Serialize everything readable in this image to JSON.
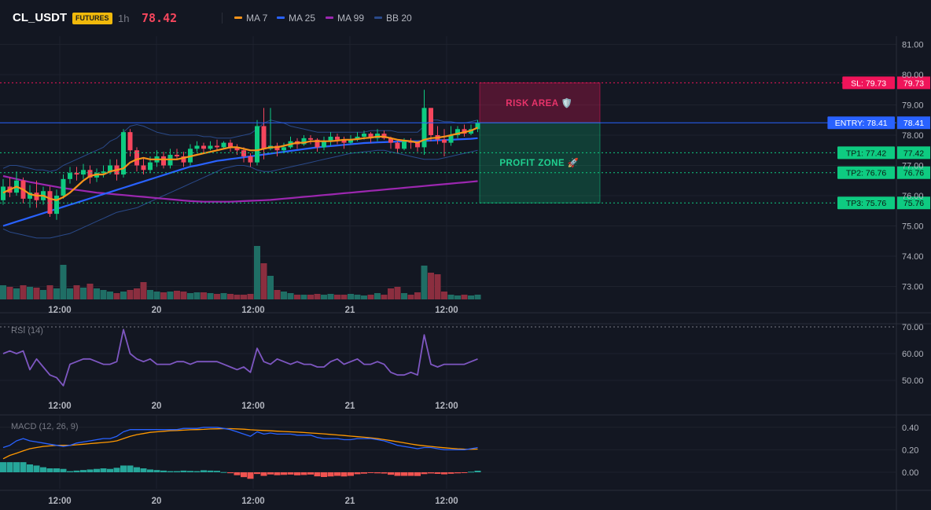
{
  "header": {
    "symbol": "CL_USDT",
    "badge": "FUTURES",
    "timeframe": "1h",
    "last_price": "78.42",
    "legend": [
      {
        "label": "MA 7",
        "color": "#f7931a"
      },
      {
        "label": "MA 25",
        "color": "#2962ff"
      },
      {
        "label": "MA 99",
        "color": "#9c27b0"
      },
      {
        "label": "BB 20",
        "color": "#2a4a8a"
      }
    ]
  },
  "colors": {
    "up": "#0ecb81",
    "down": "#f6465d",
    "vol_up": "#1f6e65",
    "vol_down": "#8b2e3f",
    "grid": "#1e222d",
    "bb": "#2a4a8a",
    "rsi": "#7e57c2",
    "macd": "#2962ff",
    "signal": "#ff9800"
  },
  "chart_data": [
    {
      "type": "candlestick",
      "title": "CL_USDT",
      "y_ticks": [
        "81.00",
        "80.00",
        "79.00",
        "78.00",
        "77.00",
        "76.00",
        "75.00",
        "74.00",
        "73.00"
      ],
      "x_ticks": [
        "12:00",
        "20",
        "12:00",
        "21",
        "12:00"
      ],
      "ylim": [
        72.5,
        81.2
      ],
      "candles": [
        [
          75.85,
          76.3,
          76.55,
          75.7
        ],
        [
          76.3,
          76.1,
          76.6,
          75.95
        ],
        [
          76.1,
          76.5,
          76.8,
          76.0
        ],
        [
          76.5,
          75.9,
          76.6,
          75.75
        ],
        [
          75.9,
          76.1,
          76.35,
          75.6
        ],
        [
          76.1,
          75.85,
          76.5,
          75.6
        ],
        [
          75.85,
          76.15,
          76.3,
          75.7
        ],
        [
          76.15,
          75.4,
          76.3,
          75.3
        ],
        [
          75.4,
          76.0,
          76.2,
          75.2
        ],
        [
          76.0,
          76.55,
          76.7,
          75.9
        ],
        [
          76.55,
          76.75,
          76.95,
          76.4
        ],
        [
          76.75,
          76.7,
          76.95,
          76.5
        ],
        [
          76.7,
          76.85,
          77.05,
          76.55
        ],
        [
          76.85,
          76.6,
          77.0,
          76.4
        ],
        [
          76.6,
          76.75,
          76.9,
          76.45
        ],
        [
          76.75,
          76.8,
          77.0,
          76.6
        ],
        [
          76.8,
          77.0,
          77.2,
          76.7
        ],
        [
          77.0,
          76.7,
          77.2,
          76.5
        ],
        [
          76.7,
          78.1,
          78.2,
          76.6
        ],
        [
          78.1,
          77.5,
          78.2,
          77.3
        ],
        [
          77.5,
          77.0,
          77.6,
          76.8
        ],
        [
          77.0,
          76.85,
          77.25,
          76.7
        ],
        [
          76.85,
          77.1,
          77.3,
          76.75
        ],
        [
          77.1,
          77.3,
          77.5,
          76.95
        ],
        [
          77.3,
          77.0,
          77.45,
          76.9
        ],
        [
          77.0,
          77.35,
          77.55,
          76.9
        ],
        [
          77.35,
          77.3,
          77.55,
          77.2
        ],
        [
          77.3,
          77.1,
          77.45,
          76.95
        ],
        [
          77.1,
          77.55,
          77.7,
          77.0
        ],
        [
          77.55,
          77.65,
          77.8,
          77.45
        ],
        [
          77.65,
          77.55,
          77.75,
          77.4
        ],
        [
          77.55,
          77.65,
          77.8,
          77.5
        ],
        [
          77.65,
          77.6,
          77.85,
          77.5
        ],
        [
          77.6,
          77.75,
          77.8,
          77.55
        ],
        [
          77.75,
          77.6,
          77.85,
          77.45
        ],
        [
          77.6,
          77.5,
          77.7,
          77.35
        ],
        [
          77.5,
          77.3,
          77.6,
          77.1
        ],
        [
          77.3,
          77.1,
          77.4,
          76.95
        ],
        [
          77.1,
          78.3,
          78.5,
          77.0
        ],
        [
          78.3,
          77.55,
          78.9,
          77.2
        ],
        [
          77.55,
          77.65,
          78.9,
          77.5
        ],
        [
          77.65,
          77.5,
          77.75,
          77.3
        ],
        [
          77.5,
          77.6,
          77.75,
          77.4
        ],
        [
          77.6,
          77.8,
          77.95,
          77.55
        ],
        [
          77.8,
          77.7,
          77.9,
          77.55
        ],
        [
          77.7,
          77.9,
          78.0,
          77.65
        ],
        [
          77.9,
          77.85,
          78.0,
          77.7
        ],
        [
          77.85,
          77.6,
          77.9,
          77.45
        ],
        [
          77.6,
          77.8,
          77.95,
          77.5
        ],
        [
          77.8,
          77.95,
          78.1,
          77.65
        ],
        [
          77.95,
          77.85,
          78.05,
          77.7
        ],
        [
          77.85,
          77.75,
          77.95,
          77.55
        ],
        [
          77.75,
          77.85,
          78.0,
          77.7
        ],
        [
          77.85,
          77.95,
          78.1,
          77.8
        ],
        [
          77.95,
          78.05,
          78.15,
          77.85
        ],
        [
          78.05,
          77.9,
          78.1,
          77.75
        ],
        [
          77.9,
          78.05,
          78.2,
          77.8
        ],
        [
          78.05,
          77.9,
          78.15,
          77.85
        ],
        [
          77.9,
          77.75,
          77.95,
          77.55
        ],
        [
          77.75,
          77.55,
          77.8,
          77.4
        ],
        [
          77.55,
          77.8,
          77.9,
          77.5
        ],
        [
          77.8,
          77.75,
          77.9,
          77.55
        ],
        [
          77.75,
          77.6,
          77.8,
          77.45
        ],
        [
          77.6,
          78.9,
          79.5,
          77.35
        ],
        [
          78.9,
          78.0,
          78.9,
          77.8
        ],
        [
          78.0,
          77.85,
          78.3,
          77.7
        ],
        [
          77.85,
          77.75,
          78.2,
          77.3
        ],
        [
          77.75,
          78.0,
          78.3,
          77.65
        ],
        [
          78.0,
          78.2,
          78.3,
          77.9
        ],
        [
          78.2,
          78.05,
          78.35,
          77.95
        ],
        [
          78.05,
          78.2,
          78.35,
          78.0
        ],
        [
          78.2,
          78.42,
          78.5,
          78.1
        ]
      ],
      "volumes": [
        18,
        16,
        14,
        18,
        16,
        15,
        12,
        18,
        14,
        44,
        14,
        18,
        15,
        20,
        14,
        12,
        10,
        8,
        10,
        12,
        14,
        22,
        12,
        10,
        9,
        10,
        11,
        10,
        8,
        9,
        9,
        8,
        7,
        8,
        7,
        6,
        6,
        7,
        68,
        46,
        30,
        12,
        10,
        8,
        6,
        6,
        6,
        7,
        6,
        7,
        6,
        6,
        7,
        6,
        5,
        6,
        8,
        6,
        14,
        16,
        8,
        6,
        9,
        43,
        34,
        32,
        10,
        6,
        5,
        6,
        5,
        6
      ],
      "ma7": [
        76.1,
        76.2,
        76.3,
        76.2,
        76.05,
        76.0,
        76.0,
        75.9,
        75.85,
        75.95,
        76.1,
        76.3,
        76.5,
        76.65,
        76.7,
        76.7,
        76.8,
        76.85,
        76.9,
        77.1,
        77.2,
        77.25,
        77.2,
        77.2,
        77.2,
        77.2,
        77.2,
        77.25,
        77.3,
        77.35,
        77.4,
        77.45,
        77.5,
        77.55,
        77.6,
        77.6,
        77.55,
        77.5,
        77.5,
        77.55,
        77.6,
        77.6,
        77.65,
        77.7,
        77.75,
        77.75,
        77.8,
        77.8,
        77.8,
        77.8,
        77.82,
        77.85,
        77.85,
        77.87,
        77.9,
        77.92,
        77.95,
        77.95,
        77.9,
        77.85,
        77.82,
        77.8,
        77.75,
        77.85,
        77.9,
        77.92,
        77.95,
        78.0,
        78.05,
        78.1,
        78.15,
        78.25
      ],
      "ma25": [
        75.0,
        75.07,
        75.14,
        75.21,
        75.28,
        75.35,
        75.42,
        75.49,
        75.56,
        75.63,
        75.7,
        75.77,
        75.84,
        75.91,
        75.98,
        76.05,
        76.12,
        76.19,
        76.26,
        76.33,
        76.4,
        76.47,
        76.54,
        76.61,
        76.68,
        76.75,
        76.82,
        76.89,
        76.96,
        77.0,
        77.05,
        77.1,
        77.15,
        77.18,
        77.21,
        77.24,
        77.27,
        77.3,
        77.33,
        77.36,
        77.39,
        77.42,
        77.45,
        77.48,
        77.51,
        77.54,
        77.57,
        77.6,
        77.62,
        77.64,
        77.66,
        77.68,
        77.7,
        77.72,
        77.74,
        77.75,
        77.76,
        77.77,
        77.78,
        77.79,
        77.8,
        77.8,
        77.8,
        77.81,
        77.82,
        77.83,
        77.84,
        77.85,
        77.86,
        77.87,
        77.88,
        77.9
      ],
      "ma99": [
        76.65,
        76.6,
        76.55,
        76.5,
        76.45,
        76.41,
        76.37,
        76.33,
        76.29,
        76.25,
        76.22,
        76.19,
        76.16,
        76.13,
        76.1,
        76.08,
        76.06,
        76.04,
        76.02,
        76.0,
        75.98,
        75.96,
        75.94,
        75.92,
        75.9,
        75.88,
        75.86,
        75.84,
        75.82,
        75.81,
        75.8,
        75.8,
        75.8,
        75.8,
        75.8,
        75.81,
        75.82,
        75.83,
        75.84,
        75.85,
        75.86,
        75.88,
        75.9,
        75.92,
        75.94,
        75.96,
        75.98,
        76.0,
        76.02,
        76.04,
        76.06,
        76.08,
        76.1,
        76.12,
        76.14,
        76.16,
        76.18,
        76.2,
        76.22,
        76.24,
        76.26,
        76.28,
        76.3,
        76.32,
        76.34,
        76.36,
        76.38,
        76.4,
        76.42,
        76.44,
        76.46,
        76.48
      ],
      "bb_upper": [
        76.9,
        77.0,
        77.0,
        76.95,
        76.9,
        76.85,
        76.85,
        76.8,
        76.85,
        77.0,
        77.1,
        77.2,
        77.3,
        77.4,
        77.5,
        77.6,
        77.8,
        77.9,
        78.1,
        78.3,
        78.35,
        78.3,
        78.2,
        78.1,
        78.05,
        78.0,
        78.0,
        78.0,
        78.0,
        78.0,
        77.95,
        77.95,
        77.9,
        77.9,
        77.9,
        77.95,
        78.0,
        78.05,
        78.2,
        78.4,
        78.5,
        78.45,
        78.4,
        78.3,
        78.25,
        78.2,
        78.15,
        78.1,
        78.1,
        78.1,
        78.1,
        78.1,
        78.1,
        78.1,
        78.1,
        78.15,
        78.15,
        78.15,
        78.15,
        78.1,
        78.1,
        78.1,
        78.1,
        78.3,
        78.5,
        78.5,
        78.45,
        78.45,
        78.4,
        78.4,
        78.45,
        78.5
      ],
      "bb_lower": [
        74.9,
        74.8,
        74.75,
        74.7,
        74.65,
        74.6,
        74.6,
        74.6,
        74.65,
        74.7,
        74.75,
        74.85,
        74.95,
        75.05,
        75.15,
        75.25,
        75.35,
        75.45,
        75.5,
        75.55,
        75.6,
        75.7,
        75.8,
        75.9,
        76.0,
        76.1,
        76.2,
        76.3,
        76.4,
        76.5,
        76.6,
        76.7,
        76.8,
        76.9,
        76.95,
        77.0,
        77.0,
        76.95,
        76.85,
        76.8,
        76.8,
        76.85,
        76.9,
        76.95,
        77.0,
        77.05,
        77.1,
        77.15,
        77.2,
        77.25,
        77.3,
        77.35,
        77.4,
        77.42,
        77.45,
        77.47,
        77.5,
        77.5,
        77.45,
        77.4,
        77.35,
        77.3,
        77.25,
        77.2,
        77.2,
        77.2,
        77.25,
        77.3,
        77.35,
        77.4,
        77.45,
        77.5
      ],
      "levels": [
        {
          "id": "sl",
          "label": "SL: 79.73",
          "price": "79.73",
          "value": 79.73,
          "color": "#f0145a",
          "style": "dotted"
        },
        {
          "id": "entry",
          "label": "ENTRY: 78.41",
          "price": "78.41",
          "value": 78.41,
          "color": "#2962ff",
          "style": "solid"
        },
        {
          "id": "tp1",
          "label": "TP1: 77.42",
          "price": "77.42",
          "value": 77.42,
          "color": "#0ecb81",
          "style": "dotted"
        },
        {
          "id": "tp2",
          "label": "TP2: 76.76",
          "price": "76.76",
          "value": 76.76,
          "color": "#0ecb81",
          "style": "dotted"
        },
        {
          "id": "tp3",
          "label": "TP3: 75.76",
          "price": "75.76",
          "value": 75.76,
          "color": "#0ecb81",
          "style": "dotted"
        }
      ],
      "zones": [
        {
          "id": "risk",
          "label": "RISK AREA 🛡️",
          "from": 78.41,
          "to": 79.73,
          "color": "#f0145a"
        },
        {
          "id": "profit",
          "label": "PROFIT ZONE 🚀",
          "from": 75.76,
          "to": 78.41,
          "color": "#0ecb81"
        }
      ]
    },
    {
      "type": "line",
      "title": "RSI (14)",
      "y_ticks": [
        "70.00",
        "60.00",
        "50.00"
      ],
      "ylim": [
        44,
        72
      ],
      "x_ticks": [
        "12:00",
        "20",
        "12:00",
        "21",
        "12:00"
      ],
      "values": [
        60,
        61,
        60,
        61,
        54,
        58,
        55,
        52,
        51,
        48,
        56,
        57,
        58,
        58,
        57,
        56,
        56,
        57,
        69,
        60,
        58,
        57,
        58,
        56,
        56,
        56,
        57,
        57,
        56,
        57,
        57,
        57,
        57,
        56,
        55,
        54,
        55,
        53,
        62,
        57,
        56,
        58,
        57,
        56,
        57,
        56,
        56,
        55,
        55,
        57,
        58,
        56,
        57,
        58,
        56,
        56,
        57,
        56,
        53,
        52,
        52,
        53,
        52,
        67,
        56,
        55,
        56,
        56,
        56,
        56,
        57,
        58
      ],
      "overbought": 70
    },
    {
      "type": "line",
      "title": "MACD (12, 26, 9)",
      "y_ticks": [
        "0.40",
        "0.20",
        "0.00"
      ],
      "ylim": [
        -0.08,
        0.48
      ],
      "x_ticks": [
        "12:00",
        "20",
        "12:00",
        "21",
        "12:00"
      ],
      "macd": [
        0.22,
        0.24,
        0.28,
        0.3,
        0.28,
        0.27,
        0.26,
        0.25,
        0.24,
        0.23,
        0.24,
        0.26,
        0.27,
        0.28,
        0.29,
        0.3,
        0.3,
        0.32,
        0.36,
        0.38,
        0.38,
        0.38,
        0.38,
        0.38,
        0.38,
        0.38,
        0.38,
        0.39,
        0.39,
        0.39,
        0.4,
        0.4,
        0.4,
        0.39,
        0.38,
        0.36,
        0.34,
        0.32,
        0.36,
        0.34,
        0.35,
        0.34,
        0.34,
        0.34,
        0.33,
        0.33,
        0.33,
        0.31,
        0.3,
        0.3,
        0.3,
        0.29,
        0.29,
        0.3,
        0.3,
        0.3,
        0.29,
        0.28,
        0.26,
        0.24,
        0.23,
        0.22,
        0.21,
        0.22,
        0.22,
        0.21,
        0.2,
        0.2,
        0.2,
        0.2,
        0.21,
        0.22
      ],
      "signal": [
        0.12,
        0.15,
        0.17,
        0.19,
        0.21,
        0.22,
        0.23,
        0.235,
        0.24,
        0.24,
        0.24,
        0.245,
        0.25,
        0.255,
        0.26,
        0.265,
        0.27,
        0.28,
        0.3,
        0.32,
        0.335,
        0.345,
        0.355,
        0.36,
        0.365,
        0.37,
        0.372,
        0.375,
        0.378,
        0.38,
        0.382,
        0.385,
        0.387,
        0.388,
        0.388,
        0.386,
        0.383,
        0.378,
        0.375,
        0.372,
        0.369,
        0.366,
        0.363,
        0.36,
        0.357,
        0.354,
        0.35,
        0.346,
        0.342,
        0.337,
        0.332,
        0.327,
        0.322,
        0.317,
        0.312,
        0.306,
        0.299,
        0.291,
        0.282,
        0.272,
        0.262,
        0.252,
        0.243,
        0.236,
        0.23,
        0.224,
        0.218,
        0.213,
        0.209,
        0.206,
        0.205,
        0.206
      ],
      "histogram": [
        0.09,
        0.09,
        0.09,
        0.09,
        0.07,
        0.06,
        0.045,
        0.035,
        0.035,
        0.03,
        0.01,
        0.015,
        0.02,
        0.025,
        0.03,
        0.035,
        0.03,
        0.04,
        0.06,
        0.06,
        0.045,
        0.035,
        0.025,
        0.02,
        0.015,
        0.01,
        0.01,
        0.015,
        0.012,
        0.01,
        0.018,
        0.015,
        0.013,
        0.002,
        -0.008,
        -0.026,
        -0.043,
        -0.058,
        -0.015,
        -0.032,
        -0.019,
        -0.026,
        -0.023,
        -0.02,
        -0.027,
        -0.024,
        -0.02,
        -0.036,
        -0.042,
        -0.037,
        -0.032,
        -0.037,
        -0.032,
        -0.017,
        -0.012,
        -0.006,
        -0.009,
        -0.011,
        -0.022,
        -0.032,
        -0.032,
        -0.032,
        -0.033,
        -0.016,
        -0.01,
        -0.014,
        -0.018,
        -0.013,
        -0.009,
        -0.006,
        0.005,
        0.014
      ]
    }
  ]
}
